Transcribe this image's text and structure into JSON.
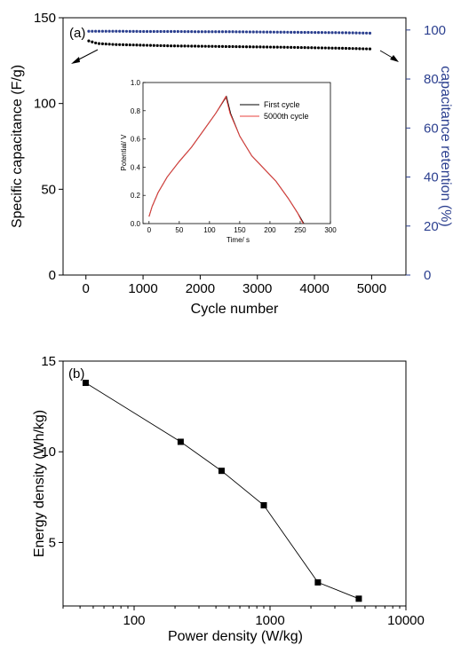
{
  "chart_data": [
    {
      "type": "scatter",
      "panel_label": "(a)",
      "xlabel": "Cycle number",
      "ylabel": "Specific capacitance (F/g)",
      "y2label": "capacitance retention (%)",
      "xlim": [
        -400,
        5600
      ],
      "ylim": [
        0,
        150
      ],
      "y2lim": [
        0,
        105
      ],
      "xticks": [
        0,
        1000,
        2000,
        3000,
        4000,
        5000
      ],
      "yticks": [
        0,
        50,
        100,
        150
      ],
      "y2ticks": [
        0,
        20,
        40,
        60,
        80,
        100
      ],
      "colors": {
        "left": "#000000",
        "right": "#2b3f8f"
      },
      "series": [
        {
          "axis": "left",
          "x": [
            50,
            200,
            500,
            1000,
            1500,
            2000,
            2500,
            3000,
            3500,
            4000,
            4500,
            5000
          ],
          "y": [
            136.5,
            135.0,
            134.4,
            134.0,
            133.6,
            133.4,
            133.2,
            133.0,
            132.8,
            132.5,
            132.2,
            131.8
          ]
        },
        {
          "axis": "right",
          "x": [
            50,
            500,
            1000,
            1500,
            2000,
            2500,
            3000,
            3500,
            4000,
            4500,
            5000
          ],
          "y": [
            99.5,
            99.5,
            99.4,
            99.4,
            99.3,
            99.3,
            99.2,
            99.1,
            99.0,
            98.9,
            98.7
          ]
        }
      ],
      "inset": {
        "type": "line",
        "xlabel": "Time/ s",
        "ylabel": "Potential/ V",
        "xlim": [
          -10,
          300
        ],
        "ylim": [
          0,
          1.0
        ],
        "xticks": [
          0,
          50,
          100,
          150,
          200,
          250,
          300
        ],
        "yticks": [
          "0.0",
          "0.2",
          "0.4",
          "0.6",
          "0.8",
          "1.0"
        ],
        "series": [
          {
            "name": "First cycle",
            "color": "#000000",
            "x": [
              0,
              5,
              15,
              30,
              50,
              70,
              90,
              110,
              128,
              135,
              150,
              170,
              190,
              210,
              230,
              245,
              252,
              256
            ],
            "y": [
              0.05,
              0.12,
              0.22,
              0.33,
              0.44,
              0.54,
              0.66,
              0.78,
              0.9,
              0.78,
              0.62,
              0.48,
              0.39,
              0.3,
              0.18,
              0.08,
              0.03,
              0.0
            ]
          },
          {
            "name": "5000th cycle",
            "color": "#e8403c",
            "x": [
              0,
              5,
              15,
              30,
              50,
              70,
              90,
              110,
              127,
              134,
              150,
              170,
              190,
              210,
              230,
              245,
              251,
              255
            ],
            "y": [
              0.05,
              0.12,
              0.22,
              0.33,
              0.44,
              0.54,
              0.66,
              0.78,
              0.9,
              0.78,
              0.62,
              0.48,
              0.39,
              0.3,
              0.18,
              0.08,
              0.03,
              0.0
            ]
          }
        ]
      }
    },
    {
      "type": "line",
      "panel_label": "(b)",
      "xlabel": "Power density (W/kg)",
      "ylabel": "Energy density (Wh/kg)",
      "xscale": "log",
      "xlim": [
        30,
        10000
      ],
      "ylim": [
        1.5,
        15
      ],
      "xticks": [
        100,
        1000,
        10000
      ],
      "yticks": [
        5,
        10,
        15
      ],
      "x": [
        44,
        220,
        440,
        900,
        2250,
        4500
      ],
      "y": [
        13.8,
        10.55,
        8.95,
        7.05,
        2.8,
        1.9
      ]
    }
  ]
}
